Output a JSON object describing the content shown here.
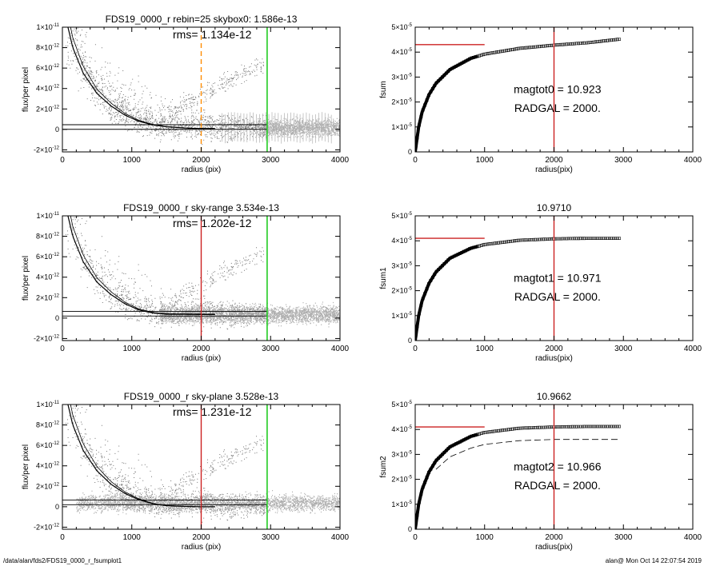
{
  "footer": {
    "left": "/data/alan/fds2/FDS19_0000_r_fsumplot1",
    "right": "alan@  Mon Oct 14 22:07:54 2019"
  },
  "colors": {
    "scatter_dark": "#555555",
    "scatter_light": "#a0a0a0",
    "red": "#cc2222",
    "green": "#22cc22",
    "orange": "#ff8c00"
  },
  "chart_data": [
    {
      "type": "scatter",
      "title": "FDS19_0000_r rebin=25    skybox0:  1.586e-13",
      "annotation": "rms= 1.134e-12",
      "xlabel": "radius (pix)",
      "ylabel": "flux/per pixel",
      "xlim": [
        0,
        4000
      ],
      "ylim": [
        -2.2e-12,
        1e-11
      ],
      "xticks": [
        "0",
        "1000",
        "2000",
        "3000",
        "4000"
      ],
      "yticks": [
        {
          "mant": "1×10",
          "exp": "-11",
          "v": 1e-11
        },
        {
          "mant": "8×10",
          "exp": "-12",
          "v": 8e-12
        },
        {
          "mant": "6×10",
          "exp": "-12",
          "v": 6e-12
        },
        {
          "mant": "4×10",
          "exp": "-12",
          "v": 4e-12
        },
        {
          "mant": "2×10",
          "exp": "-12",
          "v": 2e-12
        },
        {
          "mant": "0",
          "exp": "",
          "v": 0
        },
        {
          "mant": "-2×10",
          "exp": "-12",
          "v": -2e-12
        }
      ],
      "sky_level": 1.586e-13,
      "vline_inner": {
        "x": 2000,
        "color": "orange",
        "style": "dashed"
      },
      "vline_outer": {
        "x": 2950,
        "color": "green"
      },
      "profile_points": [
        [
          80,
          1e-11
        ],
        [
          150,
          8e-12
        ],
        [
          300,
          5.5e-12
        ],
        [
          500,
          3.5e-12
        ],
        [
          700,
          2.3e-12
        ],
        [
          900,
          1.4e-12
        ],
        [
          1100,
          8e-13
        ],
        [
          1300,
          4.5e-13
        ],
        [
          1500,
          2.5e-13
        ],
        [
          1800,
          1.2e-13
        ],
        [
          2000,
          8e-14
        ]
      ]
    },
    {
      "type": "line",
      "title": "",
      "xlabel": "radius(pix)",
      "ylabel": "fsum",
      "xlim": [
        0,
        4000
      ],
      "ylim": [
        0,
        5e-05
      ],
      "xticks": [
        "0",
        "1000",
        "2000",
        "3000",
        "4000"
      ],
      "yticks": [
        {
          "mant": "5×10",
          "exp": "-5",
          "v": 5e-05
        },
        {
          "mant": "4×10",
          "exp": "-5",
          "v": 4e-05
        },
        {
          "mant": "3×10",
          "exp": "-5",
          "v": 3e-05
        },
        {
          "mant": "2×10",
          "exp": "-5",
          "v": 2e-05
        },
        {
          "mant": "1×10",
          "exp": "-5",
          "v": 1e-05
        },
        {
          "mant": "0",
          "exp": "",
          "v": 0
        }
      ],
      "annotation1": "magtot0 =  10.923",
      "annotation2": "RADGAL =   2000.",
      "hline": {
        "y": 4.3e-05,
        "x": [
          0,
          1000
        ]
      },
      "vline": {
        "x": 2000
      },
      "curve_points": [
        [
          0,
          0
        ],
        [
          50,
          1e-05
        ],
        [
          100,
          1.6e-05
        ],
        [
          200,
          2.3e-05
        ],
        [
          300,
          2.75e-05
        ],
        [
          500,
          3.3e-05
        ],
        [
          800,
          3.75e-05
        ],
        [
          1000,
          3.92e-05
        ],
        [
          1500,
          4.15e-05
        ],
        [
          2000,
          4.28e-05
        ],
        [
          2500,
          4.38e-05
        ],
        [
          2950,
          4.52e-05
        ]
      ],
      "dashed_points": []
    },
    {
      "type": "scatter",
      "title": "FDS19_0000_r sky-range  3.534e-13",
      "annotation": "rms= 1.202e-12",
      "xlabel": "radius (pix)",
      "ylabel": "flux/per pixel",
      "xlim": [
        0,
        4000
      ],
      "ylim": [
        -2.2e-12,
        1e-11
      ],
      "xticks": [
        "0",
        "1000",
        "2000",
        "3000",
        "4000"
      ],
      "yticks": [
        {
          "mant": "1×10",
          "exp": "-11",
          "v": 1e-11
        },
        {
          "mant": "8×10",
          "exp": "-12",
          "v": 8e-12
        },
        {
          "mant": "6×10",
          "exp": "-12",
          "v": 6e-12
        },
        {
          "mant": "4×10",
          "exp": "-12",
          "v": 4e-12
        },
        {
          "mant": "2×10",
          "exp": "-12",
          "v": 2e-12
        },
        {
          "mant": "0",
          "exp": "",
          "v": 0
        },
        {
          "mant": "-2×10",
          "exp": "-12",
          "v": -2e-12
        }
      ],
      "sky_level": 3.534e-13,
      "vline_inner": {
        "x": 2000,
        "color": "red",
        "style": "solid"
      },
      "vline_outer": {
        "x": 2950,
        "color": "green"
      },
      "profile_points": [
        [
          80,
          1e-11
        ],
        [
          150,
          8e-12
        ],
        [
          300,
          5.5e-12
        ],
        [
          500,
          3.5e-12
        ],
        [
          700,
          2.3e-12
        ],
        [
          900,
          1.4e-12
        ],
        [
          1100,
          8e-13
        ],
        [
          1300,
          5e-13
        ],
        [
          1500,
          3.8e-13
        ],
        [
          1800,
          3.6e-13
        ],
        [
          2000,
          3.5e-13
        ]
      ]
    },
    {
      "type": "line",
      "title": "10.9710",
      "xlabel": "radius(pix)",
      "ylabel": "fsum1",
      "xlim": [
        0,
        4000
      ],
      "ylim": [
        0,
        5e-05
      ],
      "xticks": [
        "0",
        "1000",
        "2000",
        "3000",
        "4000"
      ],
      "yticks": [
        {
          "mant": "5×10",
          "exp": "-5",
          "v": 5e-05
        },
        {
          "mant": "4×10",
          "exp": "-5",
          "v": 4e-05
        },
        {
          "mant": "3×10",
          "exp": "-5",
          "v": 3e-05
        },
        {
          "mant": "2×10",
          "exp": "-5",
          "v": 2e-05
        },
        {
          "mant": "1×10",
          "exp": "-5",
          "v": 1e-05
        },
        {
          "mant": "0",
          "exp": "",
          "v": 0
        }
      ],
      "annotation1": "magtot1 =  10.971",
      "annotation2": "RADGAL =   2000.",
      "hline": {
        "y": 4.1e-05,
        "x": [
          0,
          1000
        ]
      },
      "vline": {
        "x": 2000
      },
      "curve_points": [
        [
          0,
          0
        ],
        [
          50,
          1e-05
        ],
        [
          100,
          1.6e-05
        ],
        [
          200,
          2.3e-05
        ],
        [
          300,
          2.75e-05
        ],
        [
          500,
          3.3e-05
        ],
        [
          800,
          3.7e-05
        ],
        [
          1000,
          3.85e-05
        ],
        [
          1500,
          4.02e-05
        ],
        [
          2000,
          4.08e-05
        ],
        [
          2500,
          4.1e-05
        ],
        [
          2950,
          4.1e-05
        ]
      ],
      "dashed_points": []
    },
    {
      "type": "scatter",
      "title": "FDS19_0000_r sky-plane  3.528e-13",
      "annotation": "rms= 1.231e-12",
      "xlabel": "radius (pix)",
      "ylabel": "flux/per pixel",
      "xlim": [
        0,
        4000
      ],
      "ylim": [
        -2.2e-12,
        1e-11
      ],
      "xticks": [
        "0",
        "1000",
        "2000",
        "3000",
        "4000"
      ],
      "yticks": [
        {
          "mant": "1×10",
          "exp": "-11",
          "v": 1e-11
        },
        {
          "mant": "8×10",
          "exp": "-12",
          "v": 8e-12
        },
        {
          "mant": "6×10",
          "exp": "-12",
          "v": 6e-12
        },
        {
          "mant": "4×10",
          "exp": "-12",
          "v": 4e-12
        },
        {
          "mant": "2×10",
          "exp": "-12",
          "v": 2e-12
        },
        {
          "mant": "0",
          "exp": "",
          "v": 0
        },
        {
          "mant": "-2×10",
          "exp": "-12",
          "v": -2e-12
        }
      ],
      "sky_level": 3.528e-13,
      "vline_inner": {
        "x": 2000,
        "color": "red",
        "style": "solid"
      },
      "vline_outer": {
        "x": 2950,
        "color": "green"
      },
      "profile_points": [
        [
          80,
          1e-11
        ],
        [
          150,
          8e-12
        ],
        [
          300,
          5.5e-12
        ],
        [
          500,
          3.5e-12
        ],
        [
          700,
          2.2e-12
        ],
        [
          900,
          1.3e-12
        ],
        [
          1100,
          7e-13
        ],
        [
          1300,
          3e-13
        ],
        [
          1500,
          1e-13
        ],
        [
          1800,
          2e-14
        ],
        [
          2000,
          0
        ]
      ]
    },
    {
      "type": "line",
      "title": "10.9662",
      "xlabel": "radius(pix)",
      "ylabel": "fsum2",
      "xlim": [
        0,
        4000
      ],
      "ylim": [
        0,
        5e-05
      ],
      "xticks": [
        "0",
        "1000",
        "2000",
        "3000",
        "4000"
      ],
      "yticks": [
        {
          "mant": "5×10",
          "exp": "-5",
          "v": 5e-05
        },
        {
          "mant": "4×10",
          "exp": "-5",
          "v": 4e-05
        },
        {
          "mant": "3×10",
          "exp": "-5",
          "v": 3e-05
        },
        {
          "mant": "2×10",
          "exp": "-5",
          "v": 2e-05
        },
        {
          "mant": "1×10",
          "exp": "-5",
          "v": 1e-05
        },
        {
          "mant": "0",
          "exp": "",
          "v": 0
        }
      ],
      "annotation1": "magtot2 =  10.966",
      "annotation2": "RADGAL =   2000.",
      "hline": {
        "y": 4.1e-05,
        "x": [
          0,
          1000
        ]
      },
      "vline": {
        "x": 2000
      },
      "curve_points": [
        [
          0,
          0
        ],
        [
          50,
          1e-05
        ],
        [
          100,
          1.6e-05
        ],
        [
          200,
          2.3e-05
        ],
        [
          300,
          2.75e-05
        ],
        [
          500,
          3.3e-05
        ],
        [
          800,
          3.72e-05
        ],
        [
          1000,
          3.88e-05
        ],
        [
          1500,
          4.05e-05
        ],
        [
          2000,
          4.1e-05
        ],
        [
          2500,
          4.12e-05
        ],
        [
          2950,
          4.12e-05
        ]
      ],
      "dashed_points": [
        [
          300,
          2.4e-05
        ],
        [
          500,
          2.9e-05
        ],
        [
          800,
          3.25e-05
        ],
        [
          1000,
          3.4e-05
        ],
        [
          1500,
          3.55e-05
        ],
        [
          2000,
          3.6e-05
        ],
        [
          2500,
          3.6e-05
        ],
        [
          2950,
          3.6e-05
        ]
      ]
    }
  ]
}
